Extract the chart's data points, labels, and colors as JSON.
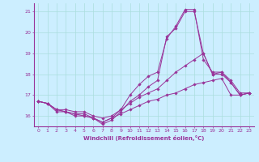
{
  "xlabel": "Windchill (Refroidissement éolien,°C)",
  "background_color": "#cceeff",
  "grid_color": "#aadddd",
  "line_color": "#993399",
  "xlim": [
    -0.5,
    23.5
  ],
  "ylim": [
    15.5,
    21.4
  ],
  "yticks": [
    16,
    17,
    18,
    19,
    20,
    21
  ],
  "xticks": [
    0,
    1,
    2,
    3,
    4,
    5,
    6,
    7,
    8,
    9,
    10,
    11,
    12,
    13,
    14,
    15,
    16,
    17,
    18,
    19,
    20,
    21,
    22,
    23
  ],
  "series": [
    [
      16.7,
      16.6,
      16.2,
      16.2,
      16.0,
      16.0,
      15.9,
      15.7,
      15.9,
      16.1,
      16.3,
      16.5,
      16.7,
      16.8,
      17.0,
      17.1,
      17.3,
      17.5,
      17.6,
      17.7,
      17.8,
      17.0,
      17.0,
      17.1
    ],
    [
      16.7,
      16.6,
      16.3,
      16.2,
      16.1,
      16.1,
      15.9,
      15.6,
      15.8,
      16.2,
      16.7,
      17.0,
      17.4,
      17.7,
      19.8,
      20.2,
      21.0,
      21.0,
      19.0,
      18.0,
      18.1,
      17.6,
      17.0,
      17.1
    ],
    [
      16.7,
      16.6,
      16.3,
      16.2,
      16.1,
      16.0,
      15.9,
      15.7,
      15.9,
      16.3,
      17.0,
      17.5,
      17.9,
      18.1,
      19.7,
      20.3,
      21.1,
      21.1,
      18.7,
      18.1,
      18.1,
      17.7,
      17.1,
      17.1
    ],
    [
      16.7,
      16.6,
      16.3,
      16.3,
      16.2,
      16.2,
      16.0,
      15.9,
      16.0,
      16.3,
      16.6,
      16.9,
      17.1,
      17.3,
      17.7,
      18.1,
      18.4,
      18.7,
      19.0,
      18.0,
      18.0,
      17.6,
      17.0,
      17.1
    ]
  ]
}
